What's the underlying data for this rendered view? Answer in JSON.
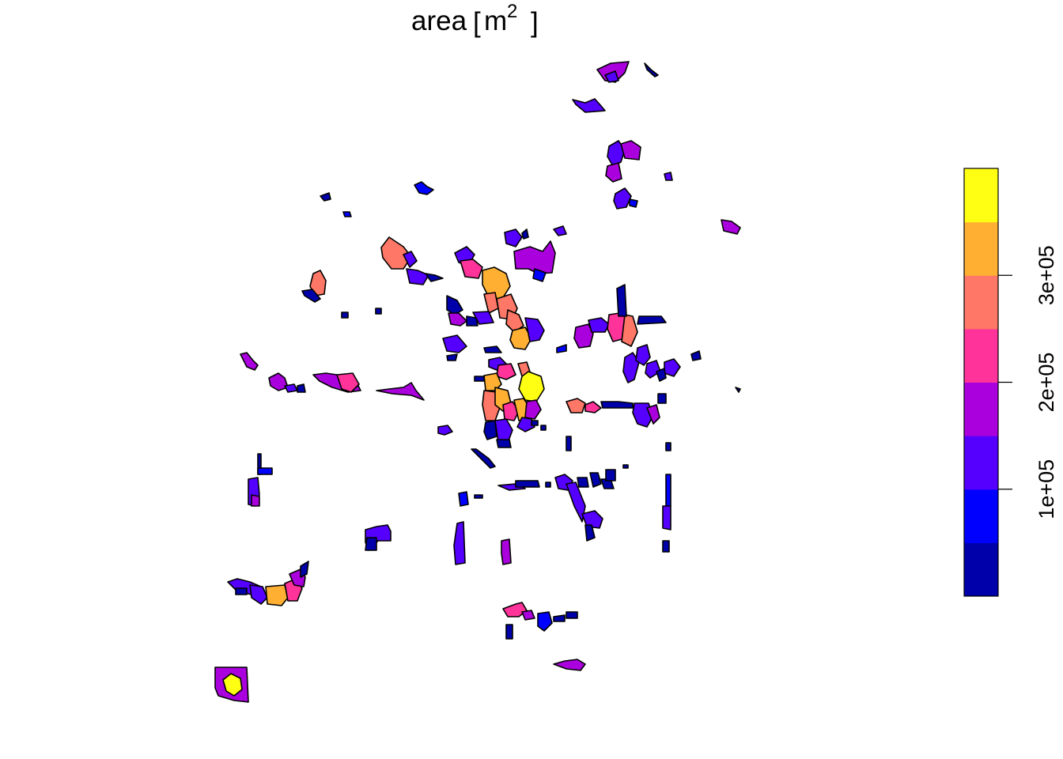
{
  "plot": {
    "title_main": "area",
    "title_unit": "m",
    "title_exponent": "2"
  },
  "legend": {
    "palette": [
      "#0000AA",
      "#0000FF",
      "#5500FF",
      "#AA00DD",
      "#FF3399",
      "#FF7766",
      "#FFB033",
      "#FFFF14"
    ],
    "range": [
      0,
      400000
    ],
    "ticks": [
      {
        "value": 100000,
        "label": "1e+05"
      },
      {
        "value": 200000,
        "label": "2e+05"
      },
      {
        "value": 300000,
        "label": "3e+05"
      }
    ]
  }
}
